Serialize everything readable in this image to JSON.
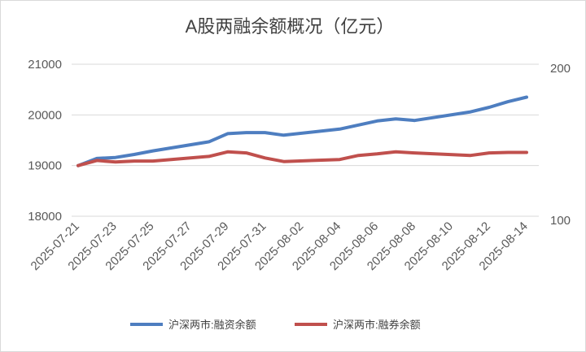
{
  "chart_data": {
    "type": "line",
    "title": "A股两融余额概况（亿元）",
    "xlabel": "",
    "ylabel": "",
    "x_tick_labels": [
      "2025-07-21",
      "2025-07-23",
      "2025-07-25",
      "2025-07-27",
      "2025-07-29",
      "2025-07-31",
      "2025-08-02",
      "2025-08-04",
      "2025-08-06",
      "2025-08-08",
      "2025-08-10",
      "2025-08-12",
      "2025-08-14"
    ],
    "x_range": [
      "2025-07-21",
      "2025-08-15"
    ],
    "y_left": {
      "ylim": [
        18000,
        21000
      ],
      "ticks": [
        "18000",
        "19000",
        "20000",
        "21000"
      ]
    },
    "y_right": {
      "ticks": [
        "100",
        "200"
      ]
    },
    "grid": "horizontal",
    "legend_position": "bottom",
    "series": [
      {
        "name": "沪深两市:融资余额",
        "color": "#4e7ec0",
        "axis": "left",
        "x": [
          "2025-07-21",
          "2025-07-22",
          "2025-07-23",
          "2025-07-24",
          "2025-07-25",
          "2025-07-28",
          "2025-07-29",
          "2025-07-30",
          "2025-07-31",
          "2025-08-01",
          "2025-08-04",
          "2025-08-05",
          "2025-08-06",
          "2025-08-07",
          "2025-08-08",
          "2025-08-11",
          "2025-08-12",
          "2025-08-13",
          "2025-08-14"
        ],
        "values": [
          19000,
          19140,
          19160,
          19220,
          19290,
          19470,
          19630,
          19650,
          19650,
          19600,
          19720,
          19800,
          19880,
          19920,
          19890,
          20060,
          20150,
          20260,
          20350
        ]
      },
      {
        "name": "沪深两市:融券余额",
        "color": "#c0504d",
        "axis": "left",
        "x": [
          "2025-07-21",
          "2025-07-22",
          "2025-07-23",
          "2025-07-24",
          "2025-07-25",
          "2025-07-28",
          "2025-07-29",
          "2025-07-30",
          "2025-07-31",
          "2025-08-01",
          "2025-08-04",
          "2025-08-05",
          "2025-08-06",
          "2025-08-07",
          "2025-08-08",
          "2025-08-11",
          "2025-08-12",
          "2025-08-13",
          "2025-08-14"
        ],
        "values": [
          19000,
          19100,
          19070,
          19090,
          19090,
          19180,
          19270,
          19250,
          19150,
          19080,
          19120,
          19200,
          19230,
          19270,
          19250,
          19200,
          19250,
          19260,
          19260
        ]
      }
    ]
  }
}
